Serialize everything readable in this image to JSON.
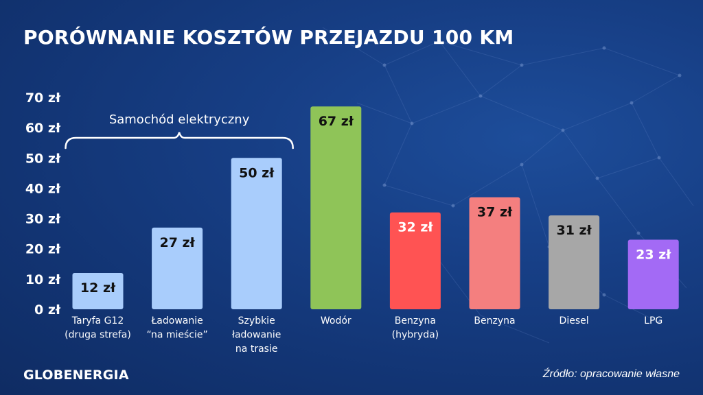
{
  "title": "PORÓWNANIE KOSZTÓW PRZEJAZDU 100 KM",
  "logo": "GLOBENERGIA",
  "source": "Źródło: opracowanie własne",
  "chart_data": {
    "type": "bar",
    "unit": "zł",
    "ylim": [
      0,
      70
    ],
    "yticks": [
      0,
      10,
      20,
      30,
      40,
      50,
      60,
      70
    ],
    "ytick_labels": [
      "0 zł",
      "10 zł",
      "20 zł",
      "30 zł",
      "40 zł",
      "50 zł",
      "60 zł",
      "70 zł"
    ],
    "grid": false,
    "group_annotation": {
      "label": "Samochód elektryczny",
      "categories": [
        0,
        1,
        2
      ]
    },
    "categories": [
      [
        "Taryfa G12",
        "(druga strefa)"
      ],
      [
        "Ładowanie",
        "“na mieście”"
      ],
      [
        "Szybkie",
        "ładowanie",
        "na trasie"
      ],
      [
        "Wodór"
      ],
      [
        "Benzyna",
        "(hybryda)"
      ],
      [
        "Benzyna"
      ],
      [
        "Diesel"
      ],
      [
        "LPG"
      ]
    ],
    "values": [
      12,
      27,
      50,
      67,
      32,
      37,
      31,
      23
    ],
    "data_labels": [
      "12 zł",
      "27 zł",
      "50 zł",
      "67 zł",
      "32 zł",
      "37 zł",
      "31 zł",
      "23 zł"
    ],
    "colors": [
      "#a9cdfc",
      "#a9cdfc",
      "#a9cdfc",
      "#8fc458",
      "#ff5353",
      "#f47f7f",
      "#a7a7a7",
      "#a36af5"
    ],
    "label_colors": [
      "#111111",
      "#111111",
      "#111111",
      "#111111",
      "#ffffff",
      "#111111",
      "#111111",
      "#ffffff"
    ]
  }
}
